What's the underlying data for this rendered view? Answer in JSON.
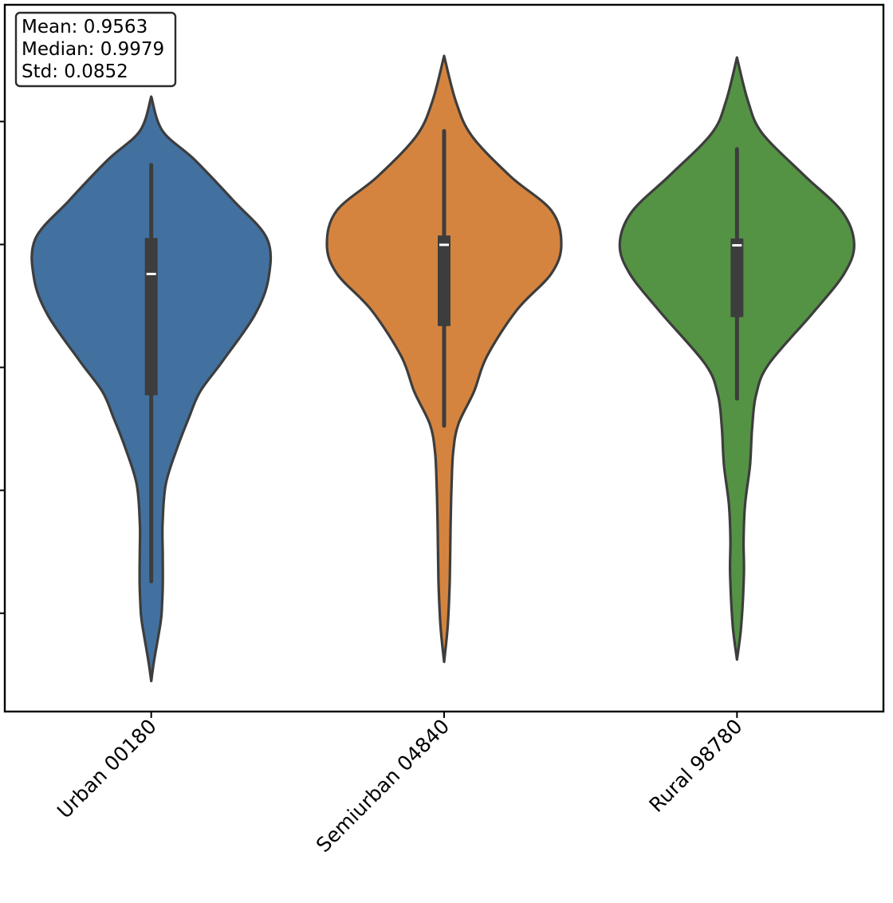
{
  "chart_data": {
    "type": "violin",
    "title": "",
    "xlabel": "",
    "ylabel": "",
    "categories": [
      "Urban 00180",
      "Semiurban 04840",
      "Rural 98780"
    ],
    "colors": [
      "#4271a0",
      "#d5843f",
      "#549344"
    ],
    "ylim": [
      0.62,
      1.195
    ],
    "yticks": [
      0.7,
      0.8,
      0.9,
      1.0,
      1.1
    ],
    "ytick_labels_visible": false,
    "grid": false,
    "violins": [
      {
        "name": "Urban 00180",
        "median": 0.976,
        "q1": 0.8773,
        "q3": 1.0053,
        "whisker_low": 0.7259,
        "whisker_high": 1.0647,
        "range": [
          0.6448,
          1.1203
        ],
        "density": [
          [
            0.6448,
            0
          ],
          [
            0.6612,
            0.024
          ],
          [
            0.6933,
            0.081
          ],
          [
            0.7083,
            0.093
          ],
          [
            0.7259,
            0.099
          ],
          [
            0.7485,
            0.098
          ],
          [
            0.7727,
            0.097
          ],
          [
            0.8053,
            0.125
          ],
          [
            0.8362,
            0.228
          ],
          [
            0.8597,
            0.324
          ],
          [
            0.8803,
            0.417
          ],
          [
            0.9051,
            0.609
          ],
          [
            0.9421,
            0.88
          ],
          [
            0.9723,
            1.0
          ],
          [
            1.0047,
            0.988
          ],
          [
            1.0354,
            0.704
          ],
          [
            1.0689,
            0.37
          ],
          [
            1.0923,
            0.097
          ],
          [
            1.1203,
            0
          ]
        ]
      },
      {
        "name": "Semiurban 04840",
        "median": 0.9997,
        "q1": 0.9336,
        "q3": 1.0073,
        "whisker_low": 0.8525,
        "whisker_high": 1.0923,
        "range": [
          0.6604,
          1.1534
        ],
        "density": [
          [
            0.6604,
            0
          ],
          [
            0.6902,
            0.031
          ],
          [
            0.7267,
            0.048
          ],
          [
            0.7703,
            0.055
          ],
          [
            0.8051,
            0.064
          ],
          [
            0.8319,
            0.078
          ],
          [
            0.8539,
            0.122
          ],
          [
            0.8803,
            0.255
          ],
          [
            0.9089,
            0.365
          ],
          [
            0.9466,
            0.62
          ],
          [
            0.9763,
            0.915
          ],
          [
            1.0003,
            1.0
          ],
          [
            1.0275,
            0.916
          ],
          [
            1.0555,
            0.565
          ],
          [
            1.0885,
            0.235
          ],
          [
            1.1165,
            0.1
          ],
          [
            1.1534,
            0
          ]
        ]
      },
      {
        "name": "Rural 98780",
        "median": 0.9993,
        "q1": 0.9409,
        "q3": 1.0049,
        "whisker_low": 0.8746,
        "whisker_high": 1.0776,
        "range": [
          0.6623,
          1.1521
        ],
        "density": [
          [
            0.6623,
            0
          ],
          [
            0.6897,
            0.036
          ],
          [
            0.7317,
            0.059
          ],
          [
            0.7593,
            0.056
          ],
          [
            0.7887,
            0.069
          ],
          [
            0.8205,
            0.111
          ],
          [
            0.8506,
            0.129
          ],
          [
            0.8777,
            0.163
          ],
          [
            0.9027,
            0.271
          ],
          [
            0.9449,
            0.653
          ],
          [
            0.9763,
            0.915
          ],
          [
            1.0003,
            1.0
          ],
          [
            1.0265,
            0.898
          ],
          [
            1.0569,
            0.566
          ],
          [
            1.0905,
            0.215
          ],
          [
            1.1165,
            0.094
          ],
          [
            1.1521,
            0
          ]
        ]
      }
    ]
  },
  "stats_box": {
    "mean": "Mean: 0.9563",
    "median": "Median: 0.9979",
    "std": "Std: 0.0852"
  }
}
